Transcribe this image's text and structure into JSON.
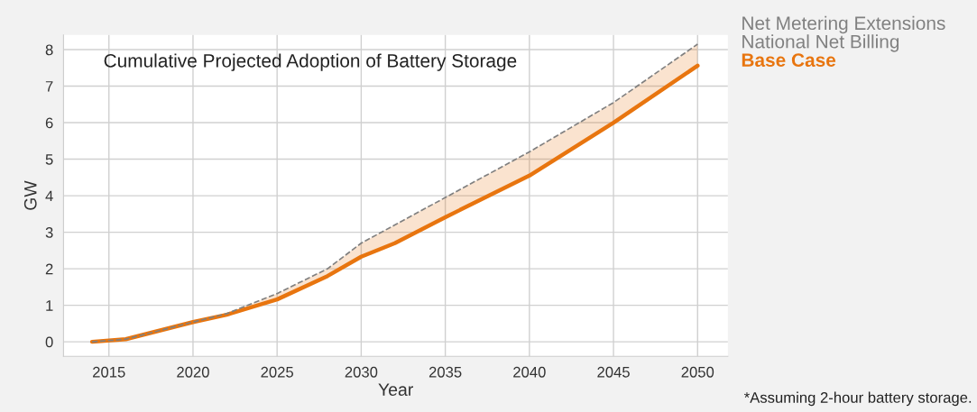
{
  "chart_data": {
    "type": "line",
    "title": "Cumulative Projected Adoption of Battery Storage",
    "xlabel": "Year",
    "ylabel": "GW",
    "annotations": [
      "*Assuming 2-hour battery storage."
    ],
    "x": [
      2014,
      2016,
      2020,
      2022,
      2025,
      2028,
      2030,
      2032,
      2035,
      2040,
      2045,
      2050
    ],
    "series": [
      {
        "name": "Net Metering Extensions",
        "color": "#808080",
        "line_style": "dashed",
        "values": [
          0,
          0.07,
          0.54,
          0.77,
          1.32,
          2.0,
          2.7,
          3.2,
          3.95,
          5.2,
          6.55,
          8.15
        ]
      },
      {
        "name": "National Net Billing",
        "color": "#808080",
        "line_style": "dashed",
        "values": [
          null,
          null,
          null,
          null,
          null,
          null,
          null,
          null,
          null,
          null,
          null,
          null
        ]
      },
      {
        "name": "Base Case",
        "color": "#e8750f",
        "line_style": "solid",
        "values": [
          0,
          0.07,
          0.54,
          0.74,
          1.16,
          1.8,
          2.33,
          2.7,
          3.41,
          4.55,
          6.0,
          7.56
        ],
        "lower": [
          0,
          0.07,
          0.54,
          0.74,
          1.16,
          1.8,
          2.33,
          2.7,
          3.41,
          4.55,
          6.0,
          7.56
        ],
        "upper": [
          0,
          0.07,
          0.54,
          0.77,
          1.32,
          2.0,
          2.7,
          3.2,
          3.95,
          5.2,
          6.55,
          8.15
        ]
      }
    ],
    "xlim": [
      2012.3,
      2051.8
    ],
    "ylim": [
      -0.4,
      8.4
    ],
    "xticks": [
      2015,
      2020,
      2025,
      2030,
      2035,
      2040,
      2045,
      2050
    ],
    "yticks": [
      0,
      1,
      2,
      3,
      4,
      5,
      6,
      7,
      8
    ],
    "grid": true,
    "legend": "top right",
    "marker": "none"
  }
}
